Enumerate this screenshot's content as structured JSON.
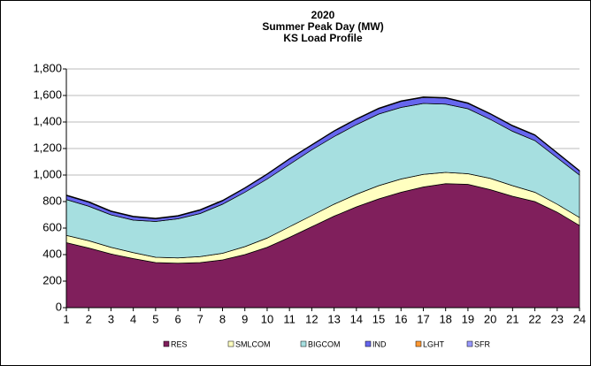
{
  "chart_data": {
    "type": "area",
    "stacked": true,
    "title": [
      "2020",
      "Summer Peak Day (MW)",
      "KS  Load Profile"
    ],
    "categories": [
      1,
      2,
      3,
      4,
      5,
      6,
      7,
      8,
      9,
      10,
      11,
      12,
      13,
      14,
      15,
      16,
      17,
      18,
      19,
      20,
      21,
      22,
      23,
      24
    ],
    "series": [
      {
        "name": "RES",
        "color": "#801f5c",
        "values": [
          490,
          450,
          405,
          370,
          340,
          335,
          340,
          360,
          400,
          455,
          530,
          610,
          690,
          760,
          820,
          870,
          910,
          935,
          930,
          890,
          840,
          800,
          720,
          620
        ]
      },
      {
        "name": "SMLCOM",
        "color": "#ffffc0",
        "values": [
          55,
          55,
          50,
          45,
          40,
          40,
          45,
          50,
          60,
          70,
          80,
          85,
          90,
          95,
          100,
          100,
          95,
          85,
          80,
          85,
          80,
          70,
          60,
          60
        ]
      },
      {
        "name": "BIGCOM",
        "color": "#a6dfe0",
        "values": [
          270,
          260,
          245,
          245,
          270,
          295,
          325,
          370,
          410,
          445,
          470,
          495,
          510,
          525,
          540,
          540,
          535,
          515,
          490,
          445,
          410,
          390,
          350,
          320
        ]
      },
      {
        "name": "IND",
        "color": "#6666ee",
        "values": [
          30,
          30,
          25,
          25,
          20,
          20,
          25,
          25,
          30,
          35,
          40,
          35,
          40,
          40,
          40,
          45,
          45,
          45,
          40,
          40,
          40,
          40,
          35,
          30
        ]
      },
      {
        "name": "LGHT",
        "color": "#ff9933",
        "values": [
          2,
          2,
          2,
          2,
          2,
          2,
          2,
          2,
          2,
          2,
          2,
          2,
          2,
          2,
          2,
          2,
          2,
          2,
          2,
          2,
          2,
          2,
          2,
          2
        ]
      },
      {
        "name": "SFR",
        "color": "#9999ff",
        "values": [
          3,
          3,
          3,
          3,
          3,
          3,
          3,
          3,
          3,
          3,
          3,
          3,
          3,
          3,
          3,
          3,
          3,
          3,
          3,
          3,
          3,
          3,
          3,
          3
        ]
      }
    ],
    "ylim": [
      0,
      1800
    ],
    "yticks": [
      0,
      200,
      400,
      600,
      800,
      {
        "value": 1000,
        "label": "1,000"
      },
      {
        "value": 1200,
        "label": "1,200"
      },
      {
        "value": 1400,
        "label": "1,400"
      },
      {
        "value": 1600,
        "label": "1,600"
      },
      {
        "value": 1800,
        "label": "1,800"
      }
    ],
    "grid": true,
    "legend": "bottom"
  }
}
